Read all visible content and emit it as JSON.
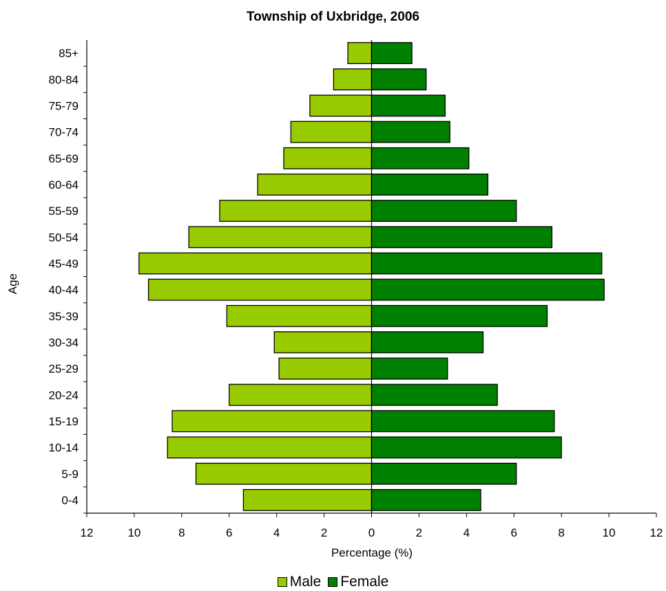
{
  "chart_data": {
    "type": "bar",
    "orientation": "horizontal",
    "title": "Township of Uxbridge, 2006",
    "xlabel": "Percentage (%)",
    "ylabel": "Age",
    "xlim": [
      -12,
      12
    ],
    "x_ticks": [
      -12,
      -10,
      -8,
      -6,
      -4,
      -2,
      0,
      2,
      4,
      6,
      8,
      10,
      12
    ],
    "x_tick_labels": [
      "12",
      "10",
      "8",
      "6",
      "4",
      "2",
      "0",
      "2",
      "4",
      "6",
      "8",
      "10",
      "12"
    ],
    "grid": false,
    "legend_position": "bottom",
    "categories": [
      "0-4",
      "5-9",
      "10-14",
      "15-19",
      "20-24",
      "25-29",
      "30-34",
      "35-39",
      "40-44",
      "45-49",
      "50-54",
      "55-59",
      "60-64",
      "65-69",
      "70-74",
      "75-79",
      "80-84",
      "85+"
    ],
    "series": [
      {
        "name": "Male",
        "color": "#99cc00",
        "values": [
          5.4,
          7.4,
          8.6,
          8.4,
          6.0,
          3.9,
          4.1,
          6.1,
          9.4,
          9.8,
          7.7,
          6.4,
          4.8,
          3.7,
          3.4,
          2.6,
          1.6,
          1.0
        ]
      },
      {
        "name": "Female",
        "color": "#008000",
        "values": [
          4.6,
          6.1,
          8.0,
          7.7,
          5.3,
          3.2,
          4.7,
          7.4,
          9.8,
          9.7,
          7.6,
          6.1,
          4.9,
          4.1,
          3.3,
          3.1,
          2.3,
          1.7
        ]
      }
    ]
  }
}
